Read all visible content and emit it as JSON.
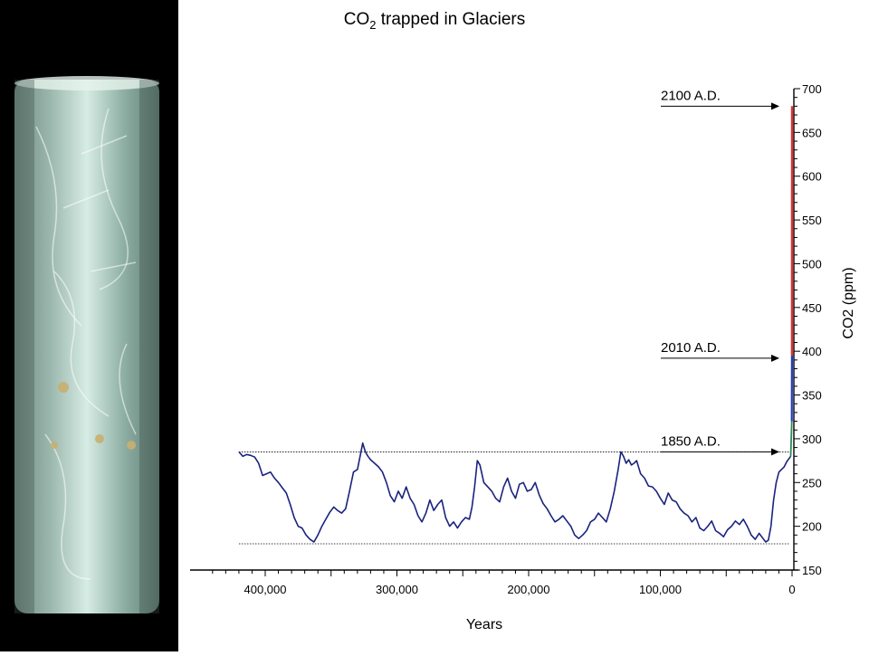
{
  "title_main": "CO",
  "title_sub": "2",
  "title_rest": " trapped in Glaciers",
  "colors": {
    "history": "#1a237e",
    "recent": "#2e8b57",
    "modern": "#1e3cc8",
    "projection": "#e03030"
  },
  "chart_data": {
    "type": "line",
    "xlabel": "Years",
    "ylabel": "CO2 (ppm)",
    "x_ticks": [
      {
        "value": 400000,
        "label": "400,000"
      },
      {
        "value": 300000,
        "label": "300,000"
      },
      {
        "value": 200000,
        "label": "200,000"
      },
      {
        "value": 100000,
        "label": "100,000"
      },
      {
        "value": 0,
        "label": "0"
      }
    ],
    "y_ticks": [
      150,
      200,
      250,
      300,
      350,
      400,
      450,
      500,
      550,
      600,
      650,
      700
    ],
    "xlim": [
      440000,
      0
    ],
    "ylim": [
      150,
      700
    ],
    "reference_lines": [
      285,
      180
    ],
    "annotations": [
      {
        "label": "2100 A.D.",
        "value": 680
      },
      {
        "label": "2010 A.D.",
        "value": 392
      },
      {
        "label": "1850 A.D.",
        "value": 285
      }
    ],
    "series": [
      {
        "x": [
          420000,
          417000,
          414000,
          411000,
          408000,
          405000,
          402000,
          399000,
          396000,
          393000,
          390000,
          387000,
          384000,
          381000,
          378000,
          375000,
          372000,
          369000,
          366000,
          363000,
          360000,
          357000,
          354000,
          351000,
          348000,
          345000,
          342000,
          339000,
          336000,
          333000,
          330000,
          328000,
          326000,
          324000,
          322000,
          320000,
          317000,
          314000,
          311000,
          308000,
          305000,
          302000,
          299000,
          296000,
          293000,
          290000,
          287000,
          284000,
          281000,
          278000,
          275000,
          272000,
          269000,
          266000,
          263000,
          260000,
          257000,
          254000,
          251000,
          248000,
          245000,
          243000,
          241000,
          239000,
          237000,
          234000,
          231000,
          228000,
          225000,
          222000,
          219000,
          216000,
          213000,
          210000,
          207000,
          204000,
          201000,
          198000,
          195000,
          192000,
          189000,
          186000,
          183000,
          180000,
          177000,
          174000,
          171000,
          168000,
          165000,
          162000,
          159000,
          156000,
          153000,
          150000,
          147000,
          144000,
          141000,
          138000,
          135000,
          132000,
          130000,
          128000,
          126000,
          124000,
          122000,
          120000,
          118000,
          115000,
          112000,
          109000,
          106000,
          103000,
          100000,
          97000,
          94000,
          91000,
          88000,
          85000,
          82000,
          79000,
          76000,
          73000,
          70000,
          67000,
          64000,
          61000,
          58000,
          55000,
          52000,
          49000,
          46000,
          43000,
          40000,
          37000,
          34000,
          31000,
          28000,
          25000,
          22000,
          20000,
          18000,
          16000,
          14000,
          12000,
          10000,
          8000,
          6000,
          4000,
          2000,
          1000
        ],
        "values": [
          285,
          280,
          282,
          281,
          279,
          272,
          258,
          260,
          262,
          255,
          250,
          244,
          238,
          225,
          210,
          200,
          198,
          190,
          185,
          182,
          190,
          200,
          208,
          216,
          222,
          218,
          215,
          220,
          240,
          262,
          265,
          280,
          295,
          285,
          280,
          276,
          272,
          268,
          262,
          250,
          235,
          228,
          240,
          232,
          245,
          232,
          225,
          212,
          205,
          215,
          230,
          218,
          225,
          230,
          210,
          200,
          205,
          198,
          205,
          210,
          208,
          222,
          245,
          275,
          270,
          250,
          245,
          240,
          232,
          228,
          245,
          255,
          240,
          232,
          248,
          250,
          240,
          242,
          250,
          236,
          226,
          220,
          212,
          205,
          208,
          212,
          206,
          200,
          190,
          186,
          190,
          195,
          205,
          208,
          215,
          210,
          205,
          220,
          240,
          265,
          285,
          280,
          272,
          276,
          270,
          272,
          275,
          260,
          255,
          246,
          245,
          240,
          232,
          225,
          238,
          230,
          228,
          220,
          215,
          212,
          205,
          210,
          198,
          195,
          200,
          206,
          195,
          192,
          188,
          196,
          200,
          206,
          202,
          208,
          200,
          190,
          185,
          192,
          186,
          182,
          184,
          200,
          230,
          250,
          262,
          265,
          268,
          274,
          278,
          280
        ]
      },
      {
        "x": [
          1000,
          200
        ],
        "values": [
          280,
          320
        ]
      },
      {
        "x": [
          200,
          60
        ],
        "values": [
          320,
          395
        ]
      },
      {
        "x": [
          60,
          0
        ],
        "values": [
          395,
          680
        ]
      }
    ]
  }
}
